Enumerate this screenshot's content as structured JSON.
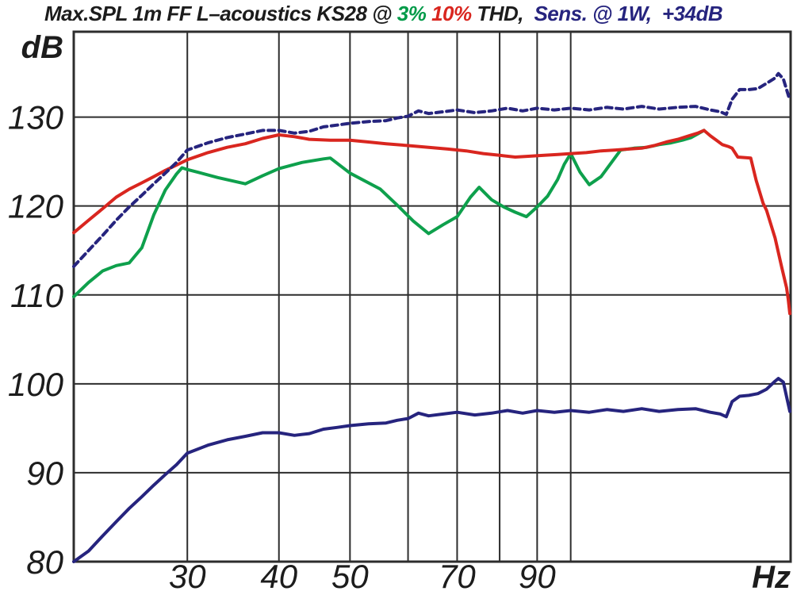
{
  "title": {
    "segments": [
      {
        "text": "Max.SPL 1m FF L–acoustics KS28 @ ",
        "color": "#1c1c1c"
      },
      {
        "text": "3% ",
        "color": "#009a48"
      },
      {
        "text": "10% ",
        "color": "#d9261f"
      },
      {
        "text": "THD,",
        "color": "#1c1c1c"
      },
      {
        "text": "  Sens. @ 1W,  +34dB",
        "color": "#26247e"
      }
    ]
  },
  "chart_data": {
    "type": "line",
    "title": "Max.SPL 1m FF L-acoustics KS28 @ 3% 10% THD, Sens. @ 1W, +34dB",
    "x_axis": {
      "label": "Hz",
      "scale": "log",
      "min": 21,
      "max": 199.5,
      "gridlines": [
        30,
        40,
        50,
        60,
        70,
        80,
        90,
        100
      ],
      "tick_labels": [
        30,
        40,
        50,
        70,
        90
      ]
    },
    "y_axis": {
      "label": "dB",
      "scale": "linear",
      "min": 80,
      "max": 139.6,
      "gridlines": [
        90,
        100,
        110,
        120,
        130
      ],
      "tick_labels": [
        80,
        90,
        100,
        110,
        120,
        130
      ]
    },
    "grid": true,
    "legend_position": "none",
    "series": [
      {
        "name": "Max SPL @ 3% THD",
        "id": "max-spl-3pct-thd",
        "color": "#0ea04c",
        "style": "solid",
        "points": [
          [
            21,
            109.8
          ],
          [
            22,
            111.4
          ],
          [
            23,
            112.7
          ],
          [
            24,
            113.3
          ],
          [
            25,
            113.6
          ],
          [
            26,
            115.3
          ],
          [
            27,
            119.0
          ],
          [
            28,
            121.8
          ],
          [
            29,
            123.6
          ],
          [
            29.5,
            124.3
          ],
          [
            30,
            124.1
          ],
          [
            31,
            123.8
          ],
          [
            33,
            123.2
          ],
          [
            36,
            122.5
          ],
          [
            38,
            123.4
          ],
          [
            40,
            124.2
          ],
          [
            43,
            124.9
          ],
          [
            46,
            125.3
          ],
          [
            47,
            125.4
          ],
          [
            50,
            123.7
          ],
          [
            55,
            121.9
          ],
          [
            58,
            120.1
          ],
          [
            61,
            118.3
          ],
          [
            64,
            116.9
          ],
          [
            67,
            117.9
          ],
          [
            70,
            118.8
          ],
          [
            73,
            121.0
          ],
          [
            75,
            122.1
          ],
          [
            78,
            120.7
          ],
          [
            81,
            119.9
          ],
          [
            84,
            119.3
          ],
          [
            87,
            118.8
          ],
          [
            90,
            119.9
          ],
          [
            93,
            121.1
          ],
          [
            96,
            123.0
          ],
          [
            98,
            124.7
          ],
          [
            100,
            125.9
          ],
          [
            103,
            123.8
          ],
          [
            106,
            122.4
          ],
          [
            110,
            123.3
          ],
          [
            113,
            124.6
          ],
          [
            117,
            126.3
          ],
          [
            122,
            126.5
          ],
          [
            127,
            126.6
          ],
          [
            132,
            126.9
          ],
          [
            137,
            127.1
          ],
          [
            142,
            127.4
          ],
          [
            146,
            127.7
          ],
          [
            149,
            128.1
          ],
          [
            152,
            128.5
          ]
        ]
      },
      {
        "name": "Max SPL @ 10% THD",
        "id": "max-spl-10pct-thd",
        "color": "#d9261f",
        "style": "solid",
        "points": [
          [
            21,
            117.0
          ],
          [
            22,
            118.4
          ],
          [
            23,
            119.7
          ],
          [
            24,
            121.0
          ],
          [
            25,
            121.9
          ],
          [
            26,
            122.6
          ],
          [
            27,
            123.3
          ],
          [
            28,
            124.0
          ],
          [
            29,
            124.6
          ],
          [
            30,
            125.2
          ],
          [
            32,
            126.0
          ],
          [
            34,
            126.6
          ],
          [
            36,
            127.0
          ],
          [
            38,
            127.6
          ],
          [
            40,
            128.0
          ],
          [
            42,
            127.8
          ],
          [
            44,
            127.5
          ],
          [
            47,
            127.4
          ],
          [
            50,
            127.4
          ],
          [
            53,
            127.2
          ],
          [
            56,
            127.0
          ],
          [
            60,
            126.8
          ],
          [
            64,
            126.6
          ],
          [
            68,
            126.4
          ],
          [
            72,
            126.2
          ],
          [
            76,
            125.9
          ],
          [
            80,
            125.7
          ],
          [
            84,
            125.5
          ],
          [
            88,
            125.6
          ],
          [
            92,
            125.7
          ],
          [
            96,
            125.8
          ],
          [
            100,
            125.9
          ],
          [
            105,
            126.0
          ],
          [
            110,
            126.2
          ],
          [
            115,
            126.3
          ],
          [
            120,
            126.4
          ],
          [
            125,
            126.5
          ],
          [
            130,
            126.8
          ],
          [
            135,
            127.2
          ],
          [
            140,
            127.5
          ],
          [
            145,
            127.9
          ],
          [
            149,
            128.2
          ],
          [
            152,
            128.5
          ],
          [
            155,
            127.9
          ],
          [
            158,
            127.4
          ],
          [
            161,
            126.9
          ],
          [
            164,
            126.7
          ],
          [
            166,
            126.5
          ],
          [
            169,
            125.5
          ],
          [
            176,
            125.4
          ],
          [
            179,
            122.9
          ],
          [
            183,
            120.3
          ],
          [
            185,
            119.5
          ],
          [
            190,
            116.4
          ],
          [
            194,
            113.1
          ],
          [
            197,
            110.8
          ],
          [
            198,
            109.5
          ],
          [
            199,
            107.9
          ]
        ]
      },
      {
        "name": "Sens. @ 1W +34dB",
        "id": "sens-1w-plus-34db",
        "color": "#26247e",
        "style": "dashed",
        "points": [
          [
            21,
            113.2
          ],
          [
            22,
            115.0
          ],
          [
            23,
            116.7
          ],
          [
            24,
            118.4
          ],
          [
            25,
            119.9
          ],
          [
            26,
            121.2
          ],
          [
            27,
            122.5
          ],
          [
            28,
            123.7
          ],
          [
            29,
            124.9
          ],
          [
            30,
            126.3
          ],
          [
            32,
            127.1
          ],
          [
            34,
            127.7
          ],
          [
            36,
            128.1
          ],
          [
            38,
            128.5
          ],
          [
            40,
            128.5
          ],
          [
            42,
            128.2
          ],
          [
            44,
            128.4
          ],
          [
            46,
            128.9
          ],
          [
            48,
            129.1
          ],
          [
            50,
            129.3
          ],
          [
            53,
            129.5
          ],
          [
            56,
            129.6
          ],
          [
            58,
            129.9
          ],
          [
            60,
            130.1
          ],
          [
            62,
            130.7
          ],
          [
            64,
            130.4
          ],
          [
            67,
            130.6
          ],
          [
            70,
            130.8
          ],
          [
            74,
            130.5
          ],
          [
            78,
            130.7
          ],
          [
            82,
            131.0
          ],
          [
            86,
            130.7
          ],
          [
            90,
            131.0
          ],
          [
            95,
            130.8
          ],
          [
            100,
            131.0
          ],
          [
            106,
            130.8
          ],
          [
            112,
            131.1
          ],
          [
            118,
            130.9
          ],
          [
            125,
            131.2
          ],
          [
            132,
            130.9
          ],
          [
            140,
            131.1
          ],
          [
            148,
            131.2
          ],
          [
            155,
            130.8
          ],
          [
            160,
            130.6
          ],
          [
            163,
            130.3
          ],
          [
            166,
            132.0
          ],
          [
            170,
            133.1
          ],
          [
            175,
            133.1
          ],
          [
            180,
            133.2
          ],
          [
            185,
            133.8
          ],
          [
            190,
            134.4
          ],
          [
            192,
            134.9
          ],
          [
            195,
            134.3
          ],
          [
            199,
            131.9
          ]
        ]
      },
      {
        "name": "Sens. @ 1W",
        "id": "sensitivity-1w",
        "color": "#26247e",
        "style": "solid",
        "points": [
          [
            21,
            80.0
          ],
          [
            22,
            81.2
          ],
          [
            23,
            82.9
          ],
          [
            24,
            84.5
          ],
          [
            25,
            86.0
          ],
          [
            26,
            87.3
          ],
          [
            27,
            88.6
          ],
          [
            28,
            89.8
          ],
          [
            29,
            90.9
          ],
          [
            30,
            92.2
          ],
          [
            32,
            93.1
          ],
          [
            34,
            93.7
          ],
          [
            36,
            94.1
          ],
          [
            38,
            94.5
          ],
          [
            40,
            94.5
          ],
          [
            42,
            94.2
          ],
          [
            44,
            94.4
          ],
          [
            46,
            94.9
          ],
          [
            48,
            95.1
          ],
          [
            50,
            95.3
          ],
          [
            53,
            95.5
          ],
          [
            56,
            95.6
          ],
          [
            58,
            95.9
          ],
          [
            60,
            96.1
          ],
          [
            62,
            96.7
          ],
          [
            64,
            96.4
          ],
          [
            67,
            96.6
          ],
          [
            70,
            96.8
          ],
          [
            74,
            96.5
          ],
          [
            78,
            96.7
          ],
          [
            82,
            97.0
          ],
          [
            86,
            96.7
          ],
          [
            90,
            97.0
          ],
          [
            95,
            96.8
          ],
          [
            100,
            97.0
          ],
          [
            106,
            96.8
          ],
          [
            112,
            97.1
          ],
          [
            118,
            96.9
          ],
          [
            125,
            97.2
          ],
          [
            132,
            96.9
          ],
          [
            140,
            97.1
          ],
          [
            148,
            97.2
          ],
          [
            155,
            96.8
          ],
          [
            160,
            96.6
          ],
          [
            163,
            96.3
          ],
          [
            166,
            98.0
          ],
          [
            170,
            98.6
          ],
          [
            175,
            98.7
          ],
          [
            180,
            98.9
          ],
          [
            185,
            99.4
          ],
          [
            190,
            100.3
          ],
          [
            192,
            100.6
          ],
          [
            195,
            100.2
          ],
          [
            199,
            96.9
          ]
        ]
      }
    ]
  },
  "style": {
    "grid_color": "#2d2d2d",
    "background": "#ffffff",
    "text_color": "#1c1c1c"
  }
}
